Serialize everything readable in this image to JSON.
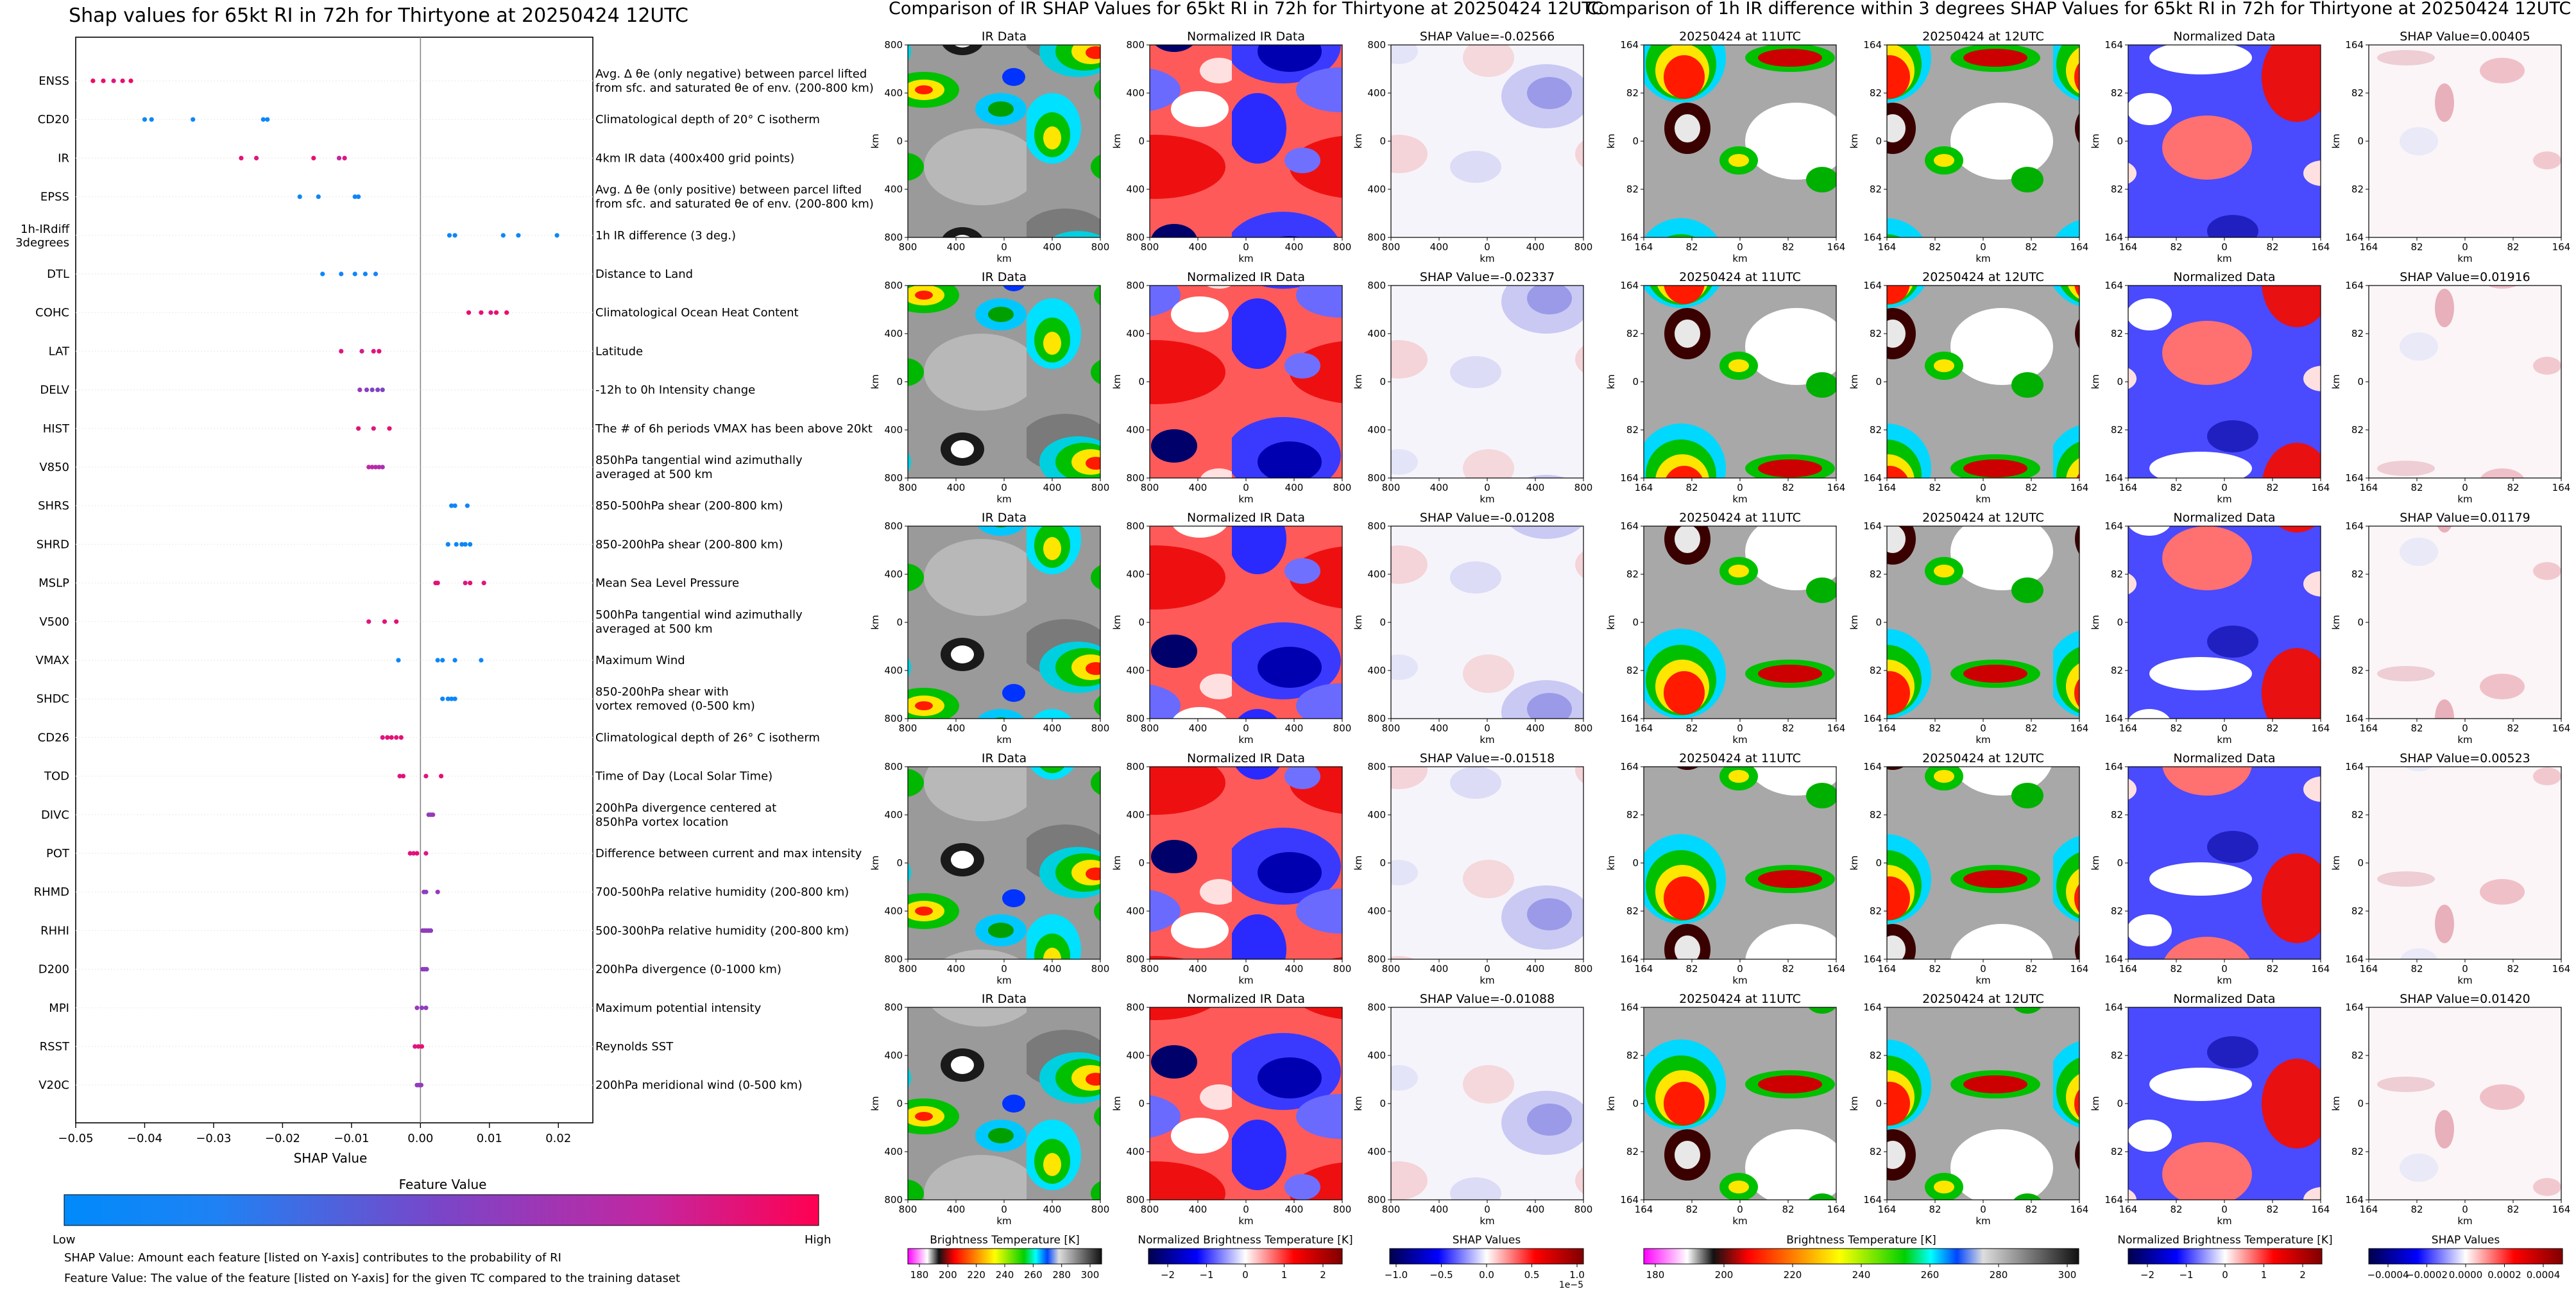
{
  "chart_data": [
    {
      "type": "scatter",
      "title": "Shap values for 65kt RI in 72h for Thirtyone at 20250424 12UTC",
      "xlabel": "SHAP Value",
      "xlim": [
        -0.05,
        0.025
      ],
      "xticks": [
        "−0.05",
        "−0.04",
        "−0.03",
        "−0.02",
        "−0.01",
        "0.00",
        "0.01",
        "0.02"
      ],
      "grid": false,
      "colorbar": {
        "title": "Feature Value",
        "low_label": "Low",
        "high_label": "High",
        "colors": [
          "#008afb",
          "#1e82f4",
          "#7a45c8",
          "#c426a0",
          "#ff0051"
        ]
      },
      "notes": [
        "SHAP Value: Amount each feature [listed on Y-axis] contributes to the probability of RI",
        "Feature Value: The value of the feature [listed on Y-axis] for the given TC compared to the training dataset"
      ],
      "features": [
        {
          "name": "ENSS",
          "desc": [
            "Avg. Δ θe (only negative) between parcel lifted",
            "from sfc. and saturated θe of env. (200-800 km)"
          ],
          "points": [
            [
              -0.0475,
              0.95
            ],
            [
              -0.046,
              0.9
            ],
            [
              -0.0445,
              0.85
            ],
            [
              -0.0432,
              0.9
            ],
            [
              -0.042,
              0.95
            ]
          ]
        },
        {
          "name": "CD20",
          "desc": [
            "Climatological depth of 20° C isotherm"
          ],
          "points": [
            [
              -0.04,
              0.1
            ],
            [
              -0.039,
              0.1
            ],
            [
              -0.033,
              0.12
            ],
            [
              -0.0228,
              0.08
            ],
            [
              -0.0222,
              0.1
            ]
          ]
        },
        {
          "name": "IR",
          "desc": [
            "4km IR data (400x400 grid points)"
          ],
          "points": [
            [
              -0.026,
              0.88
            ],
            [
              -0.0238,
              0.85
            ],
            [
              -0.0155,
              0.9
            ],
            [
              -0.0118,
              0.75
            ],
            [
              -0.011,
              0.85
            ]
          ]
        },
        {
          "name": "EPSS",
          "desc": [
            "Avg. Δ θe (only positive) between parcel lifted",
            "from sfc. and saturated θe of env. (200-800 km)"
          ],
          "points": [
            [
              -0.0175,
              0.1
            ],
            [
              -0.0148,
              0.12
            ],
            [
              -0.0095,
              0.1
            ],
            [
              -0.009,
              0.08
            ]
          ]
        },
        {
          "name": "1h-IRdiff\n3degrees",
          "desc": [
            "1h IR difference (3 deg.)"
          ],
          "points": [
            [
              0.0042,
              0.1
            ],
            [
              0.005,
              0.12
            ],
            [
              0.012,
              0.1
            ],
            [
              0.0142,
              0.12
            ],
            [
              0.0198,
              0.1
            ]
          ]
        },
        {
          "name": "DTL",
          "desc": [
            "Distance to Land"
          ],
          "points": [
            [
              -0.0142,
              0.1
            ],
            [
              -0.0115,
              0.15
            ],
            [
              -0.0095,
              0.12
            ],
            [
              -0.008,
              0.15
            ],
            [
              -0.0065,
              0.2
            ]
          ]
        },
        {
          "name": "COHC",
          "desc": [
            "Climatological Ocean Heat Content"
          ],
          "points": [
            [
              0.007,
              0.92
            ],
            [
              0.0088,
              0.9
            ],
            [
              0.0102,
              0.85
            ],
            [
              0.011,
              0.9
            ],
            [
              0.0125,
              0.92
            ]
          ]
        },
        {
          "name": "LAT",
          "desc": [
            "Latitude"
          ],
          "points": [
            [
              -0.0115,
              0.85
            ],
            [
              -0.0085,
              0.8
            ],
            [
              -0.0068,
              0.85
            ],
            [
              -0.006,
              0.9
            ]
          ]
        },
        {
          "name": "DELV",
          "desc": [
            "-12h to 0h Intensity change"
          ],
          "points": [
            [
              -0.0088,
              0.6
            ],
            [
              -0.0078,
              0.55
            ],
            [
              -0.007,
              0.5
            ],
            [
              -0.0062,
              0.55
            ],
            [
              -0.0055,
              0.5
            ]
          ]
        },
        {
          "name": "HIST",
          "desc": [
            "The # of 6h periods VMAX has been above 20kt"
          ],
          "points": [
            [
              -0.009,
              0.88
            ],
            [
              -0.0068,
              0.85
            ],
            [
              -0.0045,
              0.9
            ]
          ]
        },
        {
          "name": "V850",
          "desc": [
            "850hPa tangential wind azimuthally",
            "averaged at 500 km"
          ],
          "points": [
            [
              -0.0075,
              0.75
            ],
            [
              -0.007,
              0.7
            ],
            [
              -0.0065,
              0.72
            ],
            [
              -0.006,
              0.7
            ],
            [
              -0.0055,
              0.65
            ]
          ]
        },
        {
          "name": "SHRS",
          "desc": [
            "850-500hPa shear (200-800 km)"
          ],
          "points": [
            [
              0.0045,
              0.12
            ],
            [
              0.005,
              0.1
            ],
            [
              0.0068,
              0.15
            ]
          ]
        },
        {
          "name": "SHRD",
          "desc": [
            "850-200hPa shear (200-800 km)"
          ],
          "points": [
            [
              0.004,
              0.12
            ],
            [
              0.0052,
              0.1
            ],
            [
              0.006,
              0.15
            ],
            [
              0.0065,
              0.12
            ],
            [
              0.0072,
              0.1
            ]
          ]
        },
        {
          "name": "MSLP",
          "desc": [
            "Mean Sea Level Pressure"
          ],
          "points": [
            [
              0.0022,
              0.9
            ],
            [
              0.0025,
              0.88
            ],
            [
              0.0065,
              0.85
            ],
            [
              0.0072,
              0.9
            ],
            [
              0.0092,
              0.85
            ]
          ]
        },
        {
          "name": "V500",
          "desc": [
            "500hPa tangential wind azimuthally",
            "averaged at 500 km"
          ],
          "points": [
            [
              -0.0075,
              0.85
            ],
            [
              -0.0052,
              0.88
            ],
            [
              -0.0035,
              0.9
            ]
          ]
        },
        {
          "name": "VMAX",
          "desc": [
            "Maximum Wind"
          ],
          "points": [
            [
              -0.0032,
              0.1
            ],
            [
              0.0025,
              0.12
            ],
            [
              0.0032,
              0.1
            ],
            [
              0.005,
              0.12
            ],
            [
              0.0088,
              0.1
            ]
          ]
        },
        {
          "name": "SHDC",
          "desc": [
            "850-200hPa shear with",
            "vortex removed (0-500 km)"
          ],
          "points": [
            [
              0.0032,
              0.12
            ],
            [
              0.004,
              0.1
            ],
            [
              0.0045,
              0.12
            ],
            [
              0.005,
              0.1
            ]
          ]
        },
        {
          "name": "CD26",
          "desc": [
            "Climatological depth of 26° C isotherm"
          ],
          "points": [
            [
              -0.0055,
              0.85
            ],
            [
              -0.0048,
              0.88
            ],
            [
              -0.0042,
              0.9
            ],
            [
              -0.0035,
              0.85
            ],
            [
              -0.0028,
              0.9
            ]
          ]
        },
        {
          "name": "TOD",
          "desc": [
            "Time of Day (Local Solar Time)"
          ],
          "points": [
            [
              -0.003,
              0.85
            ],
            [
              -0.0025,
              0.88
            ],
            [
              0.0008,
              0.85
            ],
            [
              0.003,
              0.9
            ]
          ]
        },
        {
          "name": "DIVC",
          "desc": [
            "200hPa divergence centered at",
            "850hPa vortex location"
          ],
          "points": [
            [
              0.0012,
              0.6
            ],
            [
              0.0015,
              0.55
            ],
            [
              0.0018,
              0.6
            ]
          ]
        },
        {
          "name": "POT",
          "desc": [
            "Difference between current and max intensity"
          ],
          "points": [
            [
              -0.0015,
              0.88
            ],
            [
              -0.001,
              0.85
            ],
            [
              -0.0005,
              0.9
            ],
            [
              0.0008,
              0.85
            ]
          ]
        },
        {
          "name": "RHMD",
          "desc": [
            "700-500hPa relative humidity (200-800 km)"
          ],
          "points": [
            [
              0.0005,
              0.6
            ],
            [
              0.0008,
              0.55
            ],
            [
              0.0025,
              0.6
            ]
          ]
        },
        {
          "name": "RHHI",
          "desc": [
            "500-300hPa relative humidity (200-800 km)"
          ],
          "points": [
            [
              0.0003,
              0.6
            ],
            [
              0.0006,
              0.55
            ],
            [
              0.0009,
              0.58
            ],
            [
              0.0012,
              0.6
            ],
            [
              0.0015,
              0.55
            ]
          ]
        },
        {
          "name": "D200",
          "desc": [
            "200hPa divergence (0-1000 km)"
          ],
          "points": [
            [
              0.0003,
              0.55
            ],
            [
              0.0006,
              0.58
            ],
            [
              0.0009,
              0.55
            ]
          ]
        },
        {
          "name": "MPI",
          "desc": [
            "Maximum potential intensity"
          ],
          "points": [
            [
              -0.0005,
              0.6
            ],
            [
              0.0002,
              0.55
            ],
            [
              0.0008,
              0.58
            ]
          ]
        },
        {
          "name": "RSST",
          "desc": [
            "Reynolds SST"
          ],
          "points": [
            [
              -0.0008,
              0.85
            ],
            [
              -0.0003,
              0.88
            ],
            [
              0.0002,
              0.9
            ]
          ]
        },
        {
          "name": "V20C",
          "desc": [
            "200hPa meridional wind (0-500 km)"
          ],
          "points": [
            [
              -0.0005,
              0.6
            ],
            [
              -0.0002,
              0.55
            ],
            [
              0.0001,
              0.58
            ]
          ]
        }
      ]
    },
    {
      "type": "heatmap",
      "title": "Comparison of IR SHAP Values for 65kt RI in 72h for Thirtyone at 20250424 12UTC",
      "column_titles": [
        "IR Data",
        "Normalized IR Data",
        "SHAP Value=-0.02566"
      ],
      "row_shap_titles": [
        "SHAP Value=-0.02566",
        "SHAP Value=-0.02337",
        "SHAP Value=-0.01208",
        "SHAP Value=-0.01518",
        "SHAP Value=-0.01088"
      ],
      "xlabel": "km",
      "ylabel": "km",
      "xticks": [
        "800",
        "400",
        "0",
        "400",
        "800"
      ],
      "yticks": [
        "800",
        "400",
        "0",
        "400",
        "800"
      ],
      "colorbars": [
        {
          "label": "Brightness Temperature [K]",
          "ticks": [
            "180",
            "200",
            "220",
            "240",
            "260",
            "280",
            "300"
          ]
        },
        {
          "label": "Normalized Brightness Temperature [K]",
          "ticks": [
            "−2",
            "−1",
            "0",
            "1",
            "2"
          ]
        },
        {
          "label": "SHAP Values",
          "ticks": [
            "−1.0",
            "−0.5",
            "0.0",
            "0.5",
            "1.0"
          ],
          "offset": "1e−5"
        }
      ]
    },
    {
      "type": "heatmap",
      "title": "Comparison of 1h IR difference within 3 degrees SHAP Values for 65kt RI in 72h for Thirtyone at 20250424 12UTC",
      "column_titles": [
        "20250424 at 11UTC",
        "20250424 at 12UTC",
        "Normalized Data"
      ],
      "row_shap_titles": [
        "SHAP Value=0.00405",
        "SHAP Value=0.01916",
        "SHAP Value=0.01179",
        "SHAP Value=0.00523",
        "SHAP Value=0.01420"
      ],
      "xlabel": "km",
      "ylabel": "km",
      "xticks": [
        "164",
        "82",
        "0",
        "82",
        "164"
      ],
      "yticks": [
        "164",
        "82",
        "0",
        "82",
        "164"
      ],
      "colorbars": [
        {
          "label": "Brightness Temperature [K]",
          "ticks": [
            "180",
            "200",
            "220",
            "240",
            "260",
            "280",
            "300"
          ]
        },
        {
          "label": "Normalized Brightness Temperature [K]",
          "ticks": [
            "−2",
            "−1",
            "0",
            "1",
            "2"
          ]
        },
        {
          "label": "SHAP Values",
          "ticks": [
            "−0.0004",
            "−0.0002",
            "0.0000",
            "0.0002",
            "0.0004"
          ]
        }
      ]
    }
  ],
  "colors": {
    "low": "#008afb",
    "high": "#ff0051",
    "ir_scale": [
      "#ff00ff",
      "#ffffff",
      "#111111",
      "#ff0000",
      "#ffff00",
      "#00d000",
      "#00ffff",
      "#0044ff",
      "#bbbbbb",
      "#222222"
    ],
    "diverging": [
      "#00004c",
      "#0000ff",
      "#ffffff",
      "#ff0000",
      "#800000"
    ]
  }
}
